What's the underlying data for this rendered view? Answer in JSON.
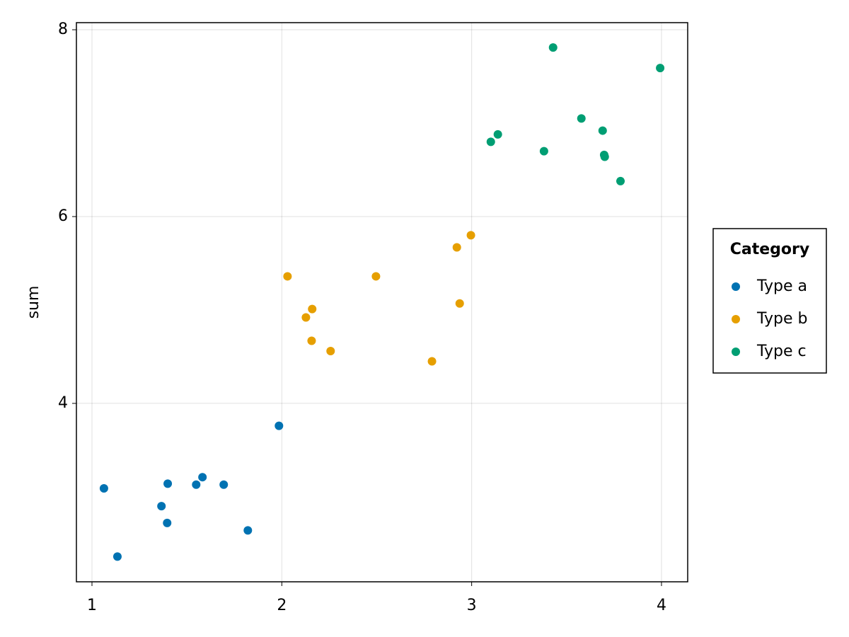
{
  "chart_data": {
    "type": "scatter",
    "ylabel": "sum",
    "legend_title": "Category",
    "legend": "right",
    "grid": true,
    "xlim": [
      0.918,
      4.138
    ],
    "ylim": [
      2.09,
      8.076
    ],
    "xticks": [
      1,
      2,
      3,
      4
    ],
    "yticks": [
      4,
      6,
      8
    ],
    "series": [
      {
        "name": "Type a",
        "color": "#0072b2",
        "x": [
          1.063,
          1.134,
          1.366,
          1.399,
          1.396,
          1.549,
          1.582,
          1.694,
          1.821,
          1.985
        ],
        "values": [
          3.09,
          2.36,
          2.9,
          3.14,
          2.72,
          3.13,
          3.21,
          3.13,
          2.64,
          3.76
        ]
      },
      {
        "name": "Type b",
        "color": "#e69f00",
        "x": [
          2.03,
          2.127,
          2.16,
          2.157,
          2.257,
          2.496,
          2.791,
          2.922,
          2.937,
          2.996
        ],
        "values": [
          5.36,
          4.92,
          5.01,
          4.67,
          4.56,
          5.36,
          4.45,
          5.67,
          5.07,
          5.8
        ]
      },
      {
        "name": "Type c",
        "color": "#009e73",
        "x": [
          3.429,
          3.993,
          3.578,
          3.69,
          3.138,
          3.101,
          3.381,
          3.698,
          3.701,
          3.784
        ],
        "values": [
          7.81,
          7.59,
          7.05,
          6.92,
          6.88,
          6.8,
          6.7,
          6.66,
          6.64,
          6.38
        ]
      }
    ]
  }
}
